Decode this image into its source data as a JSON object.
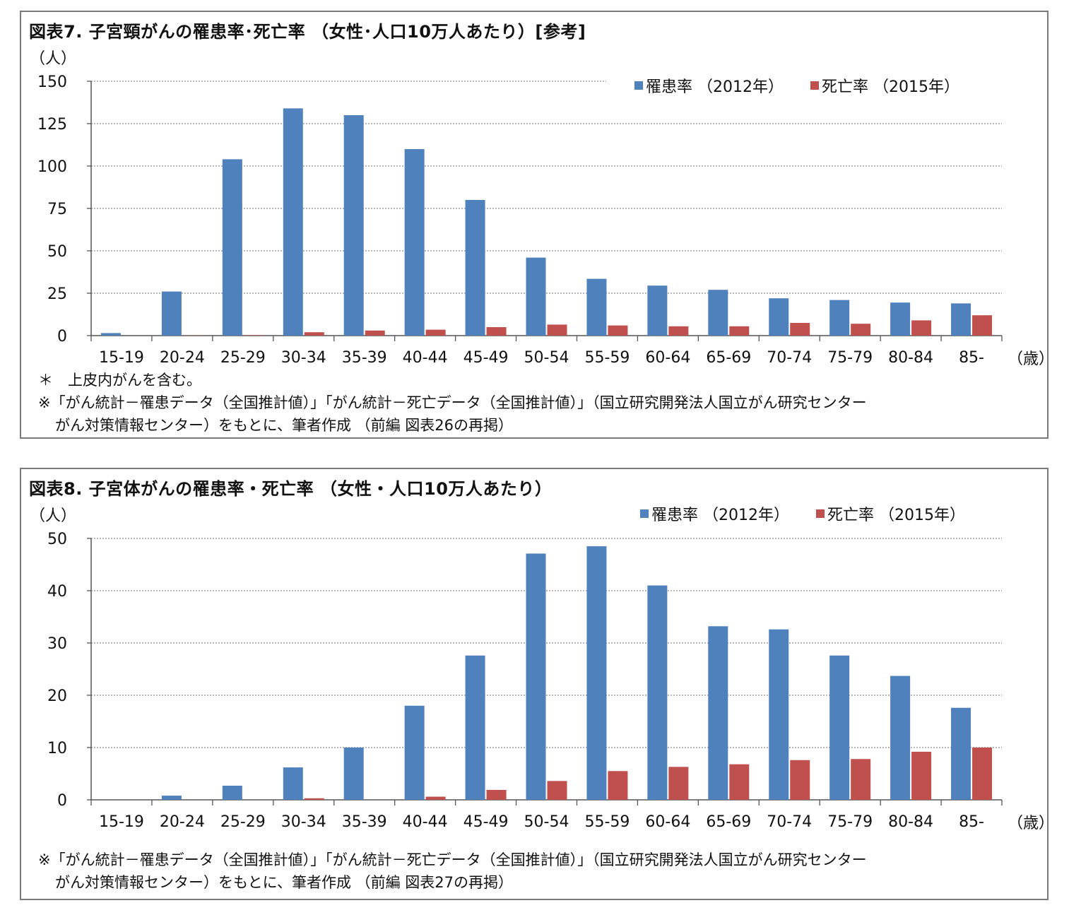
{
  "colors": {
    "incidence": "#4F81BD",
    "mortality": "#C0504D"
  },
  "chart_data": [
    {
      "type": "bar",
      "title": "図表7.  子宮頸がんの罹患率･死亡率 （女性･人口10万人あたり）[参考]",
      "ylabel": "（人）",
      "xunit": "（歳）",
      "ylim": [
        0,
        150
      ],
      "yticks": [
        0,
        25,
        50,
        75,
        100,
        125,
        150
      ],
      "grid": true,
      "legend_position": "top-right",
      "categories": [
        "15-19",
        "20-24",
        "25-29",
        "30-34",
        "35-39",
        "40-44",
        "45-49",
        "50-54",
        "55-59",
        "60-64",
        "65-69",
        "70-74",
        "75-79",
        "80-84",
        "85-"
      ],
      "series": [
        {
          "name": "罹患率 （2012年）",
          "values": [
            1.5,
            26,
            104,
            134,
            130,
            110,
            80,
            46,
            33.5,
            29.5,
            27,
            22,
            21,
            19.5,
            19
          ]
        },
        {
          "name": "死亡率 （2015年）",
          "values": [
            0,
            0.1,
            0.3,
            2,
            3,
            3.5,
            5,
            6.5,
            6,
            5.5,
            5.5,
            7.5,
            7,
            9,
            12
          ]
        }
      ],
      "notes": [
        "＊　上皮内がんを含む。",
        "※「がん統計－罹患データ（全国推計値）」「がん統計－死亡データ（全国推計値）」（国立研究開発法人国立がん研究センター",
        "がん対策情報センター）をもとに、筆者作成 （前編 図表26の再掲）"
      ]
    },
    {
      "type": "bar",
      "title": "図表8.  子宮体がんの罹患率・死亡率 （女性・人口10万人あたり）",
      "ylabel": "（人）",
      "xunit": "（歳）",
      "ylim": [
        0,
        50
      ],
      "yticks": [
        0,
        10,
        20,
        30,
        40,
        50
      ],
      "grid": true,
      "legend_position": "top-right",
      "categories": [
        "15-19",
        "20-24",
        "25-29",
        "30-34",
        "35-39",
        "40-44",
        "45-49",
        "50-54",
        "55-59",
        "60-64",
        "65-69",
        "70-74",
        "75-79",
        "80-84",
        "85-"
      ],
      "series": [
        {
          "name": "罹患率 （2012年）",
          "values": [
            0,
            0.8,
            2.7,
            6.2,
            10,
            18,
            27.6,
            47.1,
            48.5,
            41,
            33.2,
            32.6,
            27.6,
            23.7,
            17.6
          ]
        },
        {
          "name": "死亡率 （2015年）",
          "values": [
            0,
            0,
            0,
            0.3,
            0,
            0.6,
            1.9,
            3.6,
            5.5,
            6.3,
            6.8,
            7.6,
            7.8,
            9.2,
            10
          ]
        }
      ],
      "notes": [
        "※「がん統計－罹患データ（全国推計値）」「がん統計－死亡データ（全国推計値）」（国立研究開発法人国立がん研究センター",
        "がん対策情報センター）をもとに、筆者作成 （前編 図表27の再掲）"
      ]
    }
  ]
}
